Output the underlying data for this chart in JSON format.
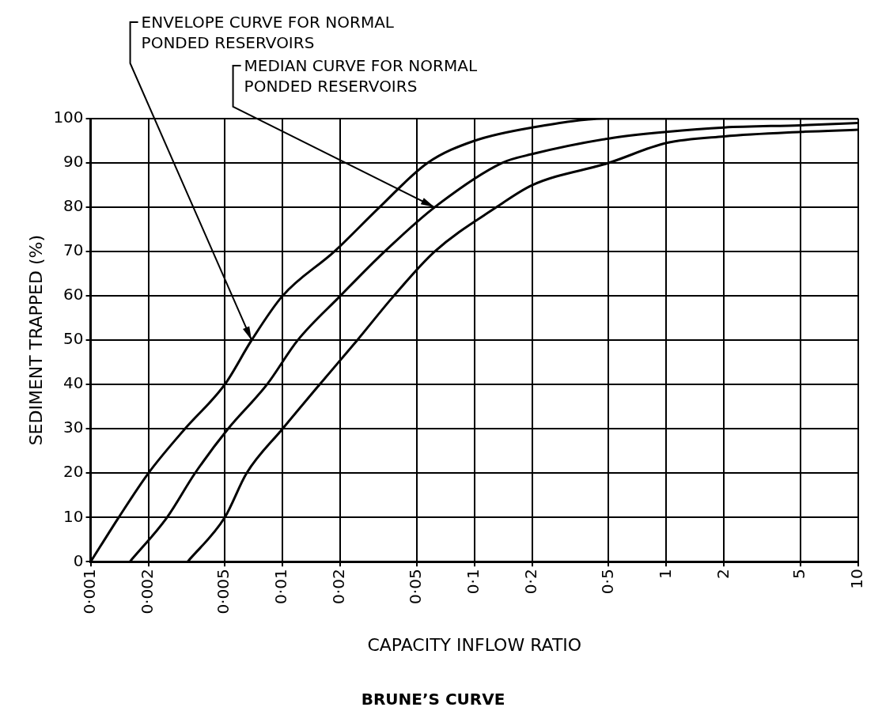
{
  "chart_data": {
    "type": "line",
    "title": "BRUNE’S CURVE",
    "xlabel": "CAPACITY INFLOW RATIO",
    "ylabel": "SEDIMENT TRAPPED (%)",
    "log": "x",
    "grid": true,
    "marker": "none",
    "line_style": "solid",
    "legend": false,
    "xlim": [
      0.001,
      10
    ],
    "ylim": [
      0,
      100
    ],
    "xticks": [
      {
        "value": 0.001,
        "label": "0·001"
      },
      {
        "value": 0.002,
        "label": "0·002"
      },
      {
        "value": 0.005,
        "label": "0·005"
      },
      {
        "value": 0.01,
        "label": "0·01"
      },
      {
        "value": 0.02,
        "label": "0·02"
      },
      {
        "value": 0.05,
        "label": "0·05"
      },
      {
        "value": 0.1,
        "label": "0·1"
      },
      {
        "value": 0.2,
        "label": "0·2"
      },
      {
        "value": 0.5,
        "label": "0·5"
      },
      1,
      2,
      5,
      10
    ],
    "yticks": [
      0,
      10,
      20,
      30,
      40,
      50,
      60,
      70,
      80,
      90,
      100
    ],
    "series": [
      {
        "color": "#000000",
        "x": [
          0.001,
          0.0014,
          0.002,
          0.0031,
          0.005,
          0.0069,
          0.01,
          0.0186,
          0.032,
          0.057,
          0.1,
          0.2,
          0.5,
          1,
          2,
          5,
          10
        ],
        "values": [
          0,
          10,
          20,
          30,
          40,
          50,
          60,
          70,
          80,
          90,
          95,
          98,
          100,
          100,
          100,
          100,
          100
        ]
      },
      {
        "color": "#000000",
        "x": [
          0.0016,
          0.0025,
          0.0035,
          0.0052,
          0.0083,
          0.012,
          0.02,
          0.034,
          0.062,
          0.139,
          0.2,
          0.5,
          1,
          2,
          5,
          10
        ],
        "values": [
          0,
          10,
          20,
          30,
          40,
          50,
          60,
          70,
          80,
          90,
          92,
          95.5,
          97,
          98,
          98.5,
          99
        ]
      },
      {
        "color": "#000000",
        "x": [
          0.0032,
          0.005,
          0.0065,
          0.01,
          0.0156,
          0.0245,
          0.038,
          0.062,
          0.13,
          0.2,
          0.5,
          1,
          2,
          5,
          10
        ],
        "values": [
          0,
          10,
          20,
          30,
          40,
          50,
          60,
          70,
          80,
          85,
          90,
          94.5,
          96,
          97,
          97.5
        ]
      }
    ],
    "annotations": [
      {
        "text": "ENVELOPE CURVE FOR NORMAL\nPONDED RESERVOIRS",
        "x": 0.0069,
        "y": 50
      },
      {
        "text": "MEDIAN CURVE FOR NORMAL\nPONDED RESERVOIRS",
        "x": 0.062,
        "y": 80
      }
    ]
  }
}
